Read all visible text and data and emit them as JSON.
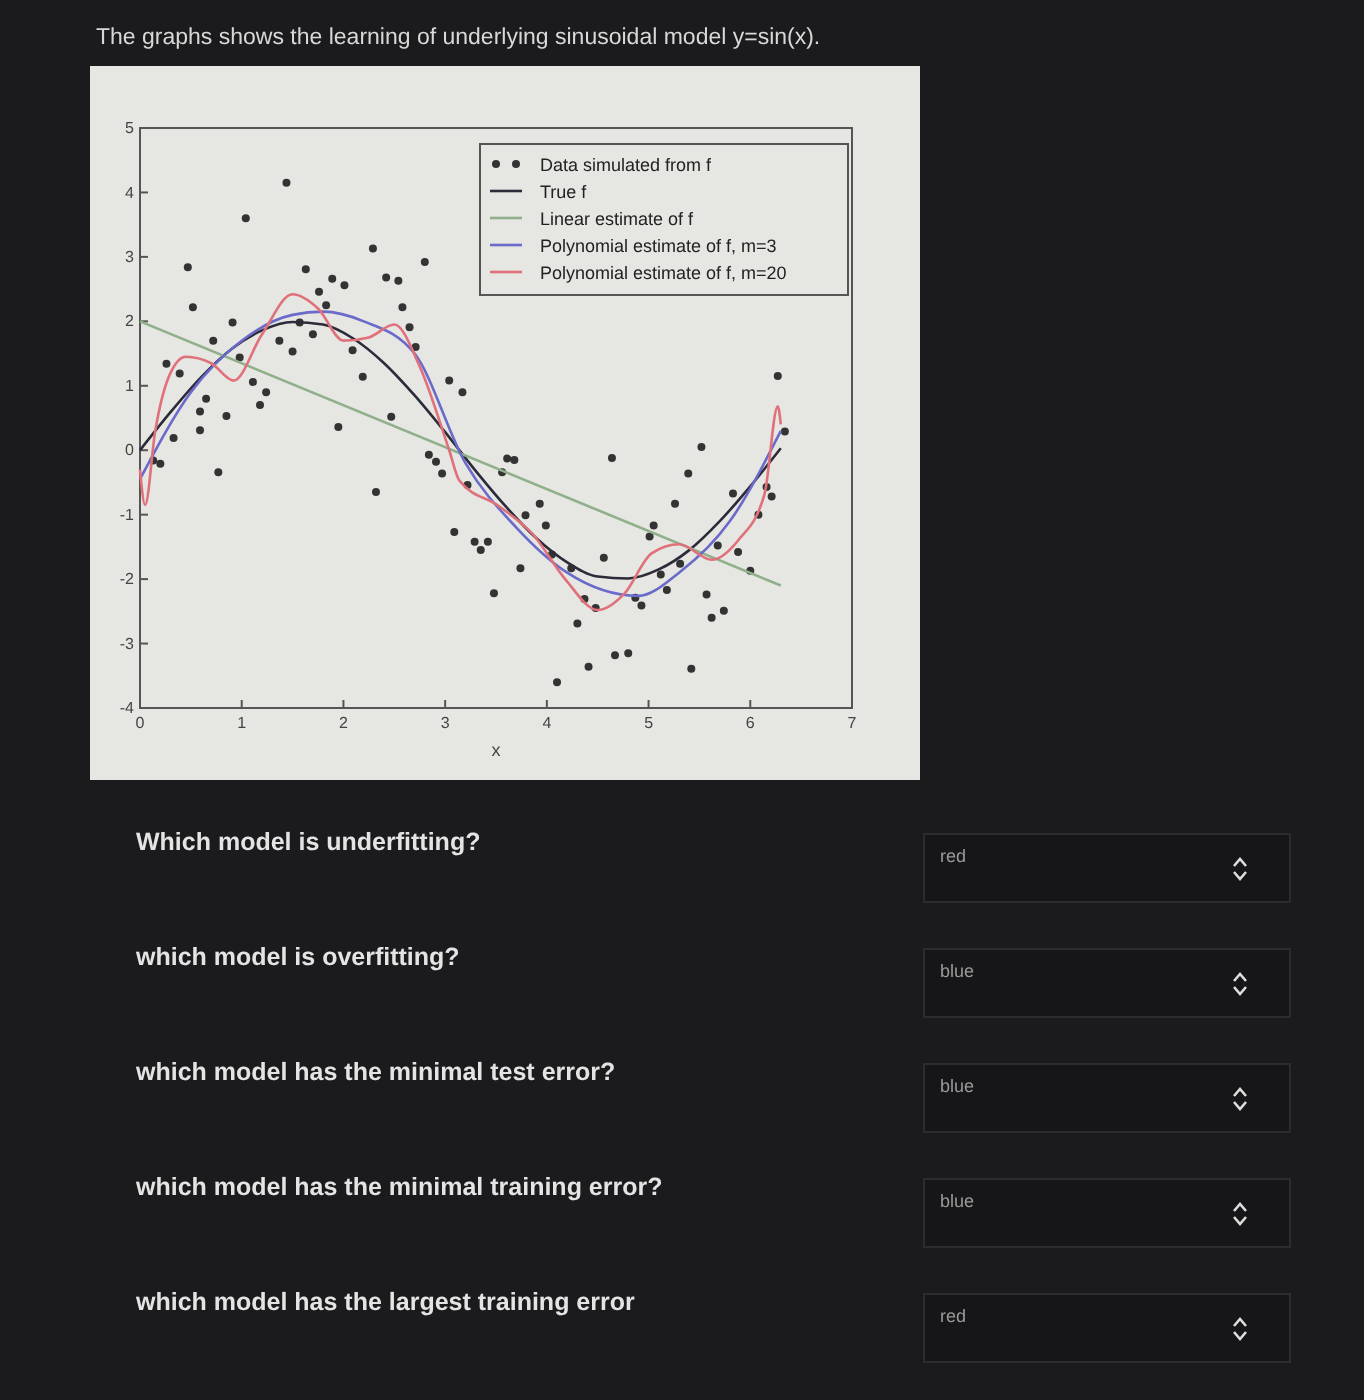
{
  "chart_data": {
    "type": "line",
    "title": "The graphs shows the learning of underlying sinusoidal model y=sin(x).",
    "xlabel": "x",
    "xlim": [
      0,
      7
    ],
    "ylim": [
      -4,
      5
    ],
    "xticks": [
      0,
      1,
      2,
      3,
      4,
      5,
      6,
      7
    ],
    "yticks": [
      -4,
      -3,
      -2,
      -1,
      0,
      1,
      2,
      3,
      4,
      5
    ],
    "grid": false,
    "legend": "top right",
    "series": [
      {
        "name": "Data simulated from f",
        "type": "scatter",
        "marker": "circle",
        "color": "#333333",
        "x": [
          1.44,
          1.04,
          0.47,
          0.52,
          0.91,
          0.72,
          0.26,
          0.39,
          0.65,
          0.59,
          0.85,
          0.33,
          1.11,
          1.24,
          1.18,
          0.98,
          1.37,
          1.5,
          1.57,
          1.7,
          1.63,
          1.76,
          1.89,
          2.01,
          1.83,
          2.29,
          2.42,
          2.54,
          2.8,
          2.58,
          2.65,
          2.71,
          2.09,
          2.19,
          1.95,
          2.47,
          3.04,
          3.17,
          0.13,
          0.2,
          0.59,
          0.77,
          2.32,
          2.84,
          2.91,
          2.97,
          3.22,
          3.09,
          3.29,
          3.35,
          3.42,
          3.61,
          3.68,
          3.56,
          3.93,
          3.79,
          3.99,
          3.74,
          3.48,
          4.05,
          4.24,
          4.37,
          4.48,
          4.3,
          4.1,
          4.41,
          4.67,
          4.8,
          4.56,
          4.64,
          4.87,
          4.93,
          5.01,
          5.05,
          5.12,
          5.18,
          5.26,
          5.39,
          5.52,
          5.31,
          5.42,
          5.57,
          5.62,
          5.74,
          5.68,
          5.88,
          5.83,
          6.0,
          6.08,
          6.16,
          6.21,
          6.34,
          6.27
        ],
        "values": [
          4.15,
          3.6,
          2.84,
          2.22,
          1.98,
          1.7,
          1.34,
          1.19,
          0.8,
          0.6,
          0.53,
          0.19,
          1.06,
          0.9,
          0.7,
          1.44,
          1.7,
          1.53,
          1.98,
          1.8,
          2.81,
          2.46,
          2.66,
          2.56,
          2.25,
          3.13,
          2.68,
          2.63,
          2.92,
          2.22,
          1.91,
          1.6,
          1.55,
          1.14,
          0.36,
          0.52,
          1.08,
          0.9,
          -0.16,
          -0.21,
          0.31,
          -0.34,
          -0.65,
          -0.07,
          -0.18,
          -0.36,
          -0.54,
          -1.27,
          -1.42,
          -1.55,
          -1.42,
          -0.13,
          -0.15,
          -0.34,
          -0.83,
          -1.01,
          -1.17,
          -1.83,
          -2.22,
          -1.62,
          -1.83,
          -2.31,
          -2.45,
          -2.69,
          -3.6,
          -3.36,
          -3.18,
          -3.15,
          -1.67,
          -0.12,
          -2.29,
          -2.41,
          -1.34,
          -1.17,
          -1.93,
          -2.17,
          -0.83,
          -0.36,
          0.05,
          -1.76,
          -3.39,
          -2.24,
          -2.6,
          -2.49,
          -1.48,
          -1.58,
          -0.67,
          -1.87,
          -1.0,
          -0.57,
          -0.72,
          0.29,
          1.15
        ]
      },
      {
        "name": "True f",
        "color": "#2b2b3a",
        "x": [
          0,
          0.3,
          0.6,
          0.9,
          1.2,
          1.5,
          1.8,
          2.1,
          2.4,
          2.7,
          3.0,
          3.3,
          3.6,
          3.9,
          4.2,
          4.5,
          4.8,
          5.1,
          5.4,
          5.7,
          6.0,
          6.3
        ],
        "values": [
          0,
          0.59,
          1.13,
          1.57,
          1.86,
          1.99,
          1.95,
          1.73,
          1.35,
          0.85,
          0.28,
          -0.32,
          -0.88,
          -1.37,
          -1.74,
          -1.96,
          -1.99,
          -1.85,
          -1.55,
          -1.1,
          -0.56,
          0.03
        ]
      },
      {
        "name": "Linear estimate of f",
        "color": "#8fb08a",
        "x": [
          0,
          6.3
        ],
        "values": [
          2.0,
          -2.1
        ]
      },
      {
        "name": "Polynomial estimate of f, m=3",
        "color": "#6a6acb",
        "x": [
          0,
          0.5,
          1,
          1.5,
          1.8,
          2.2,
          2.7,
          3.2,
          3.7,
          4.2,
          4.9,
          5.3,
          5.8,
          6.3
        ],
        "values": [
          -0.45,
          0.9,
          1.7,
          2.1,
          2.15,
          2.0,
          1.5,
          -0.2,
          -1.2,
          -1.9,
          -2.26,
          -1.9,
          -1.1,
          0.3
        ]
      },
      {
        "name": "Polynomial estimate of f, m=20",
        "color": "#e0707a",
        "x": [
          0,
          0.05,
          0.15,
          0.3,
          0.45,
          0.7,
          0.92,
          1.2,
          1.5,
          1.75,
          2.0,
          2.25,
          2.5,
          2.75,
          3.04,
          3.14,
          3.53,
          3.86,
          4.18,
          4.5,
          4.76,
          5.03,
          5.3,
          5.62,
          5.88,
          6.14,
          6.27,
          6.3
        ],
        "values": [
          -0.3,
          -0.85,
          0.3,
          1.2,
          1.45,
          1.35,
          1.08,
          1.8,
          2.42,
          2.2,
          1.7,
          1.75,
          1.95,
          1.3,
          0.0,
          -0.47,
          -0.87,
          -1.3,
          -2.0,
          -2.48,
          -2.23,
          -1.6,
          -1.46,
          -1.7,
          -1.4,
          -0.68,
          0.68,
          0.4
        ]
      }
    ],
    "annotations": [
      "Which model is underfitting?",
      "red",
      "which model is overfitting?",
      "blue",
      "which model has the minimal test error?",
      "blue",
      "which model has the minimal training error?",
      "blue",
      "which model has the largest training error",
      "red"
    ]
  }
}
